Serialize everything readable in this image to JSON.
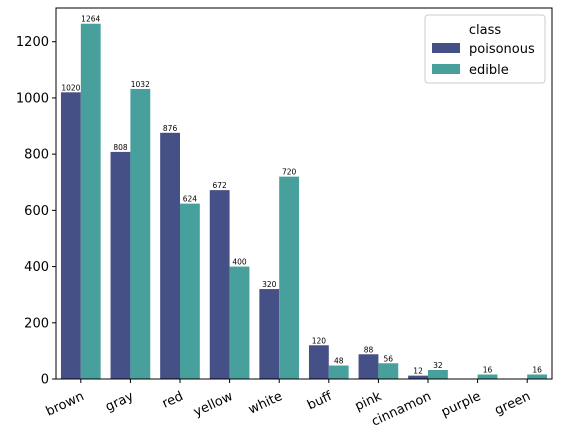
{
  "chart_data": {
    "type": "bar",
    "categories": [
      "brown",
      "gray",
      "red",
      "yellow",
      "white",
      "buff",
      "pink",
      "cinnamon",
      "purple",
      "green"
    ],
    "series": [
      {
        "name": "poisonous",
        "values": [
          1020,
          808,
          876,
          672,
          320,
          120,
          88,
          12,
          null,
          null
        ],
        "color": "#455087"
      },
      {
        "name": "edible",
        "values": [
          1264,
          1032,
          624,
          400,
          720,
          48,
          56,
          32,
          16,
          16
        ],
        "color": "#48a09d"
      }
    ],
    "title": "",
    "xlabel": "",
    "ylabel": "",
    "ylim": [
      0,
      1320
    ],
    "yticks": [
      0,
      200,
      400,
      600,
      800,
      1000,
      1200
    ],
    "grid": false,
    "legend": {
      "title": "class",
      "placement": "top-right"
    },
    "data_labels": true,
    "xtick_rotation": 25
  }
}
